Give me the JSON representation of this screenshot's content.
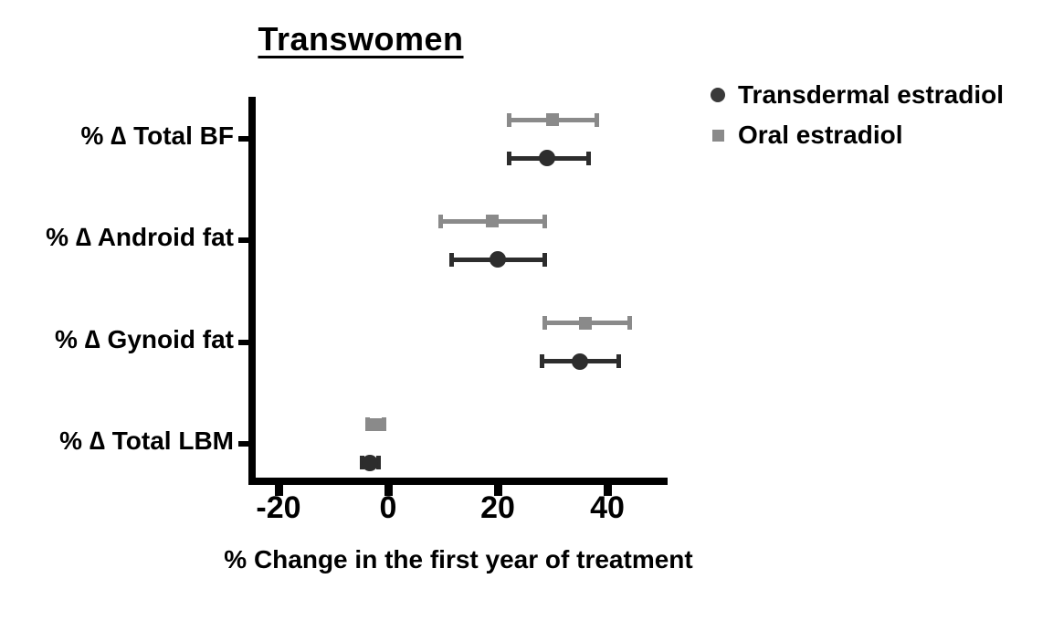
{
  "title": "Transwomen",
  "xlabel": "% Change in the first year of treatment",
  "legend": [
    {
      "label": "Transdermal estradiol",
      "marker": "circle",
      "color": "#3a3a3a"
    },
    {
      "label": "Oral estradiol",
      "marker": "square",
      "color": "#8a8a8a"
    }
  ],
  "chart_data": {
    "type": "scatter",
    "subtype": "horizontal-error-bar-forest-plot",
    "title": "Transwomen",
    "xlabel": "% Change in the first year of treatment",
    "categories": [
      "% ∆ Total BF",
      "% ∆ Android fat",
      "% ∆ Gynoid fat",
      "% ∆ Total LBM"
    ],
    "xlim": [
      -25.5,
      51
    ],
    "xticks": [
      -20,
      0,
      20,
      40
    ],
    "grid": false,
    "legend_position": "top-right",
    "series": [
      {
        "name": "Oral estradiol",
        "marker": "square",
        "color": "#8a8a8a",
        "points": [
          {
            "category": "% ∆ Total BF",
            "mean": 30,
            "lo": 22,
            "hi": 38
          },
          {
            "category": "% ∆ Android fat",
            "mean": 19,
            "lo": 9.5,
            "hi": 28.5
          },
          {
            "category": "% ∆ Gynoid fat",
            "mean": 36,
            "lo": 28.5,
            "hi": 44
          },
          {
            "category": "% ∆ Total LBM",
            "mean": -2.3,
            "lo": -3.8,
            "hi": -0.8
          }
        ]
      },
      {
        "name": "Transdermal estradiol",
        "marker": "circle",
        "color": "#2d2d2d",
        "points": [
          {
            "category": "% ∆ Total BF",
            "mean": 29,
            "lo": 22,
            "hi": 36.5
          },
          {
            "category": "% ∆ Android fat",
            "mean": 20,
            "lo": 11.5,
            "hi": 28.5
          },
          {
            "category": "% ∆ Gynoid fat",
            "mean": 35,
            "lo": 28,
            "hi": 42
          },
          {
            "category": "% ∆ Total LBM",
            "mean": -3.3,
            "lo": -4.8,
            "hi": -1.8
          }
        ]
      }
    ]
  }
}
